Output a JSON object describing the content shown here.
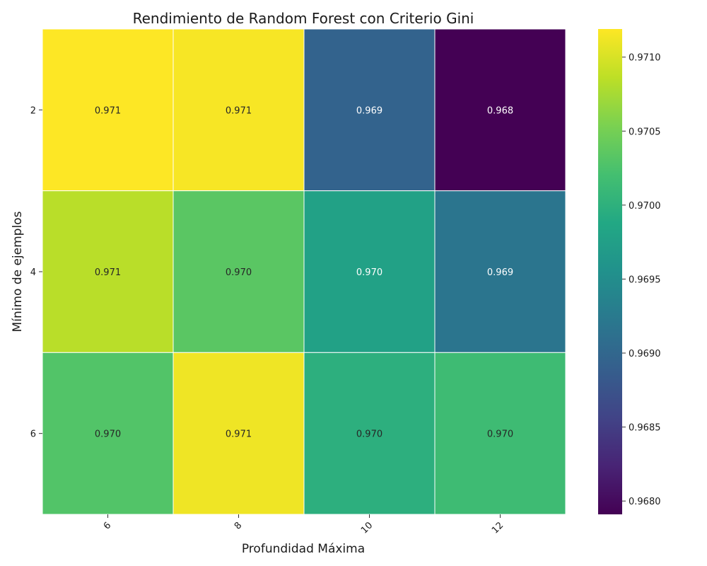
{
  "chart_data": {
    "type": "heatmap",
    "title": "Rendimiento de Random Forest con Criterio Gini",
    "xlabel": "Profundidad Máxima",
    "ylabel": "Mínimo de ejemplos",
    "x_categories": [
      "6",
      "8",
      "10",
      "12"
    ],
    "y_categories": [
      "2",
      "4",
      "6"
    ],
    "values": [
      [
        0.97119,
        0.97116,
        0.96895,
        0.96791
      ],
      [
        0.97084,
        0.97034,
        0.96978,
        0.96918
      ],
      [
        0.97029,
        0.97112,
        0.96998,
        0.97015
      ]
    ],
    "cell_labels": [
      [
        "0.971",
        "0.971",
        "0.969",
        "0.968"
      ],
      [
        "0.971",
        "0.970",
        "0.970",
        "0.969"
      ],
      [
        "0.970",
        "0.971",
        "0.970",
        "0.970"
      ]
    ],
    "colormap": "viridis",
    "color_range": [
      0.96791,
      0.97119
    ],
    "colorbar_ticks": [
      "0.9680",
      "0.9685",
      "0.9690",
      "0.9695",
      "0.9700",
      "0.9705",
      "0.9710"
    ],
    "grid": false
  }
}
